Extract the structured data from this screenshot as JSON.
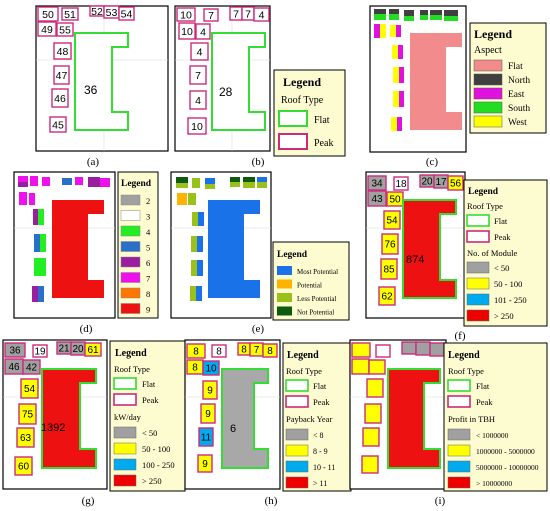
{
  "captions": [
    "(a)",
    "(b)",
    "(c)",
    "(d)",
    "(e)",
    "(f)",
    "(g)",
    "(h)",
    "(i)"
  ],
  "legend_title": "Legend",
  "roof_type_title": "Roof Type",
  "roof_flat": "Flat",
  "roof_peak": "Peak",
  "aspect": {
    "title": "Aspect",
    "items": [
      {
        "label": "Flat",
        "color": "#f28b8b"
      },
      {
        "label": "North",
        "color": "#404040"
      },
      {
        "label": "East",
        "color": "#e010e0"
      },
      {
        "label": "South",
        "color": "#22dd22"
      },
      {
        "label": "West",
        "color": "#ffff00"
      }
    ]
  },
  "slope": {
    "items": [
      {
        "label": "2",
        "color": "#a0a0a0"
      },
      {
        "label": "3",
        "color": "#ffffff"
      },
      {
        "label": "4",
        "color": "#22ee22"
      },
      {
        "label": "5",
        "color": "#2a70c8"
      },
      {
        "label": "6",
        "color": "#9a1fa0"
      },
      {
        "label": "7",
        "color": "#ee11ee"
      },
      {
        "label": "8",
        "color": "#ff7700"
      },
      {
        "label": "9",
        "color": "#ee1111"
      }
    ]
  },
  "potential": {
    "items": [
      {
        "label": "Most Potential",
        "color": "#1a72e8"
      },
      {
        "label": "Potential",
        "color": "#ffb300"
      },
      {
        "label": "Less Potential",
        "color": "#9ac01a"
      },
      {
        "label": "Not Potential",
        "color": "#0e5a0e"
      }
    ]
  },
  "modules": {
    "title": "No. of Module",
    "items": [
      {
        "label": "< 50",
        "color": "#a0a0a0"
      },
      {
        "label": "50 - 100",
        "color": "#ffff00"
      },
      {
        "label": "101 - 250",
        "color": "#00aaee"
      },
      {
        "label": "> 250",
        "color": "#ee0000"
      }
    ]
  },
  "kwday": {
    "title": "kW/day",
    "items": [
      {
        "label": "< 50",
        "color": "#a0a0a0"
      },
      {
        "label": "50 - 100",
        "color": "#ffff00"
      },
      {
        "label": "100 - 250",
        "color": "#00aaee"
      },
      {
        "label": "> 250",
        "color": "#ee0000"
      }
    ]
  },
  "payback": {
    "title": "Payback Year",
    "items": [
      {
        "label": "< 8",
        "color": "#a0a0a0"
      },
      {
        "label": "8 - 9",
        "color": "#ffff00"
      },
      {
        "label": "10 - 11",
        "color": "#00aaee"
      },
      {
        "label": "> 11",
        "color": "#ee0000"
      }
    ]
  },
  "profit": {
    "title": "Profit in TBH",
    "items": [
      {
        "label": "< 1000000",
        "color": "#a0a0a0"
      },
      {
        "label": "1000000 - 5000000",
        "color": "#ffff00"
      },
      {
        "label": "5000000 - 10000000",
        "color": "#00aaee"
      },
      {
        "label": "> 10000000",
        "color": "#ee0000"
      }
    ]
  },
  "labels": {
    "a_top": [
      "50",
      "51",
      "52",
      "53",
      "54"
    ],
    "a_side": [
      "49",
      "55",
      "48",
      "47",
      "46",
      "45"
    ],
    "a_main": "36",
    "b_top": [
      "10",
      "7",
      "7",
      "7",
      "4"
    ],
    "b_side": [
      "10",
      "4",
      "4",
      "7",
      "4",
      "10"
    ],
    "b_main": "28",
    "f_top": [
      "34",
      "18",
      "20",
      "17",
      "56",
      "43",
      "50"
    ],
    "f_side": [
      "54",
      "76",
      "85",
      "62"
    ],
    "f_main": "874",
    "g_top": [
      "36",
      "19",
      "21",
      "20",
      "61",
      "46",
      "42"
    ],
    "g_side": [
      "54",
      "75",
      "63",
      "60"
    ],
    "g_main": "1392",
    "h_top": [
      "8",
      "8",
      "8",
      "7",
      "8",
      "8",
      "10"
    ],
    "h_side": [
      "9",
      "9",
      "11",
      "9"
    ],
    "h_main": "6"
  }
}
